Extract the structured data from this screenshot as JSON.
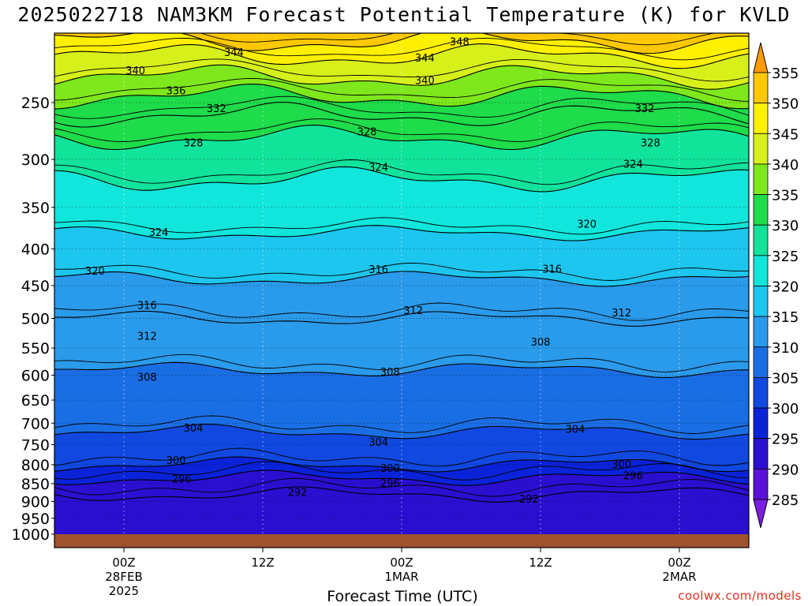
{
  "title": "2025022718 NAM3KM Forecast Potential Temperature (K) for KVLD",
  "credit": "coolwx.com/models",
  "chart_data": {
    "type": "heatmap",
    "title": "2025022718 NAM3KM Forecast Potential Temperature (K) for KVLD",
    "xlabel": "Forecast Time (UTC)",
    "ylabel": "",
    "x_range_hours_from_init": [
      0,
      60
    ],
    "y_axis": {
      "ticks": [
        250,
        300,
        350,
        400,
        450,
        500,
        550,
        600,
        650,
        700,
        750,
        800,
        850,
        900,
        950,
        1000
      ],
      "scale": "log-pressure",
      "range_hpa": [
        1000,
        200
      ],
      "grid": "dotted"
    },
    "x_ticks": [
      {
        "hour": 6,
        "label": "00Z",
        "label2": "28FEB",
        "label3": "2025"
      },
      {
        "hour": 18,
        "label": "12Z",
        "label2": "",
        "label3": ""
      },
      {
        "hour": 30,
        "label": "00Z",
        "label2": "1MAR",
        "label3": ""
      },
      {
        "hour": 42,
        "label": "12Z",
        "label2": "",
        "label3": ""
      },
      {
        "hour": 54,
        "label": "00Z",
        "label2": "2MAR",
        "label3": ""
      }
    ],
    "colorbar": {
      "labels": [
        285,
        290,
        295,
        300,
        305,
        310,
        315,
        320,
        325,
        330,
        335,
        340,
        345,
        350,
        355
      ],
      "colors": [
        "#7a1fe0",
        "#5a12d8",
        "#2a0fd0",
        "#0a22d8",
        "#1048e0",
        "#1a6ee4",
        "#2a9aea",
        "#1cc6ee",
        "#10e6dc",
        "#10e39a",
        "#1edc4a",
        "#7ee81c",
        "#d8f01a",
        "#fff000",
        "#ffc800",
        "#ff9a00"
      ]
    },
    "contours": [
      {
        "value": 292,
        "pressure_hpa": 880
      },
      {
        "value": 296,
        "pressure_hpa": 835
      },
      {
        "value": 300,
        "pressure_hpa": 800
      },
      {
        "value": 304,
        "pressure_hpa": 720
      },
      {
        "value": 308,
        "pressure_hpa": 590
      },
      {
        "value": 312,
        "pressure_hpa": 500
      },
      {
        "value": 316,
        "pressure_hpa": 440
      },
      {
        "value": 320,
        "pressure_hpa": 380
      },
      {
        "value": 324,
        "pressure_hpa": 320
      },
      {
        "value": 328,
        "pressure_hpa": 280
      },
      {
        "value": 332,
        "pressure_hpa": 260
      },
      {
        "value": 336,
        "pressure_hpa": 245
      },
      {
        "value": 340,
        "pressure_hpa": 230
      },
      {
        "value": 344,
        "pressure_hpa": 215
      },
      {
        "value": 348,
        "pressure_hpa": 205
      }
    ],
    "contour_labels": [
      {
        "text": "340",
        "hour": 7.0,
        "p": 226
      },
      {
        "text": "344",
        "hour": 15.5,
        "p": 213
      },
      {
        "text": "336",
        "hour": 10.5,
        "p": 241
      },
      {
        "text": "332",
        "hour": 14.0,
        "p": 255
      },
      {
        "text": "328",
        "hour": 12.0,
        "p": 285
      },
      {
        "text": "324",
        "hour": 9.0,
        "p": 380
      },
      {
        "text": "320",
        "hour": 3.5,
        "p": 430
      },
      {
        "text": "316",
        "hour": 8.0,
        "p": 480
      },
      {
        "text": "312",
        "hour": 8.0,
        "p": 530
      },
      {
        "text": "308",
        "hour": 8.0,
        "p": 605
      },
      {
        "text": "304",
        "hour": 12.0,
        "p": 712
      },
      {
        "text": "300",
        "hour": 10.5,
        "p": 790
      },
      {
        "text": "296",
        "hour": 11.0,
        "p": 838
      },
      {
        "text": "292",
        "hour": 21.0,
        "p": 875
      },
      {
        "text": "348",
        "hour": 35.0,
        "p": 206
      },
      {
        "text": "344",
        "hour": 32.0,
        "p": 217
      },
      {
        "text": "340",
        "hour": 32.0,
        "p": 233
      },
      {
        "text": "328",
        "hour": 27.0,
        "p": 275
      },
      {
        "text": "324",
        "hour": 28.0,
        "p": 308
      },
      {
        "text": "316",
        "hour": 28.0,
        "p": 428
      },
      {
        "text": "312",
        "hour": 31.0,
        "p": 488
      },
      {
        "text": "308",
        "hour": 29.0,
        "p": 595
      },
      {
        "text": "304",
        "hour": 28.0,
        "p": 745
      },
      {
        "text": "300",
        "hour": 29.0,
        "p": 810
      },
      {
        "text": "296",
        "hour": 29.0,
        "p": 850
      },
      {
        "text": "292",
        "hour": 41.0,
        "p": 895
      },
      {
        "text": "332",
        "hour": 51.0,
        "p": 255
      },
      {
        "text": "328",
        "hour": 51.5,
        "p": 285
      },
      {
        "text": "324",
        "hour": 50.0,
        "p": 305
      },
      {
        "text": "320",
        "hour": 46.0,
        "p": 370
      },
      {
        "text": "316",
        "hour": 43.0,
        "p": 427
      },
      {
        "text": "312",
        "hour": 49.0,
        "p": 492
      },
      {
        "text": "308",
        "hour": 42.0,
        "p": 540
      },
      {
        "text": "304",
        "hour": 45.0,
        "p": 715
      },
      {
        "text": "300",
        "hour": 49.0,
        "p": 800
      },
      {
        "text": "296",
        "hour": 50.0,
        "p": 830
      }
    ]
  }
}
